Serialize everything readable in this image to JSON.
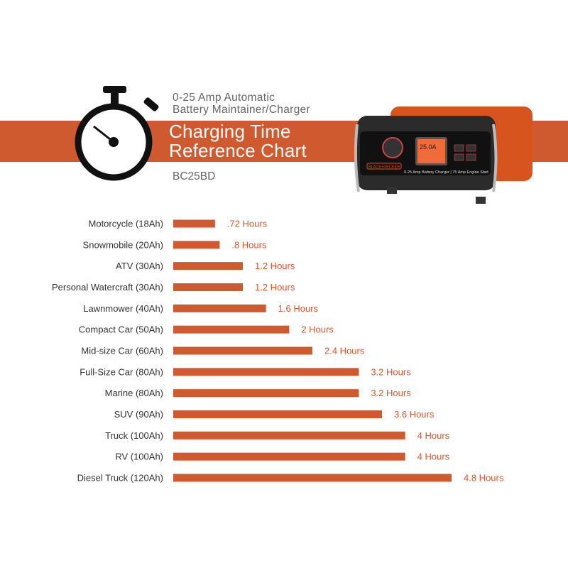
{
  "header": {
    "subtitle_line1": "0-25 Amp Automatic",
    "subtitle_line2": "Battery Maintainer/Charger",
    "title_line1": "Charging Time",
    "title_line2": "Reference Chart",
    "model": "BC25BD"
  },
  "product_image": {
    "brand_logo": "BLACK+DECKER",
    "display_reading": "25.0A",
    "front_label": "0-25 Amp Battery Charger | 75 Amp Engine Start"
  },
  "colors": {
    "accent": "#cf5a2f",
    "label_text": "#333333",
    "subtitle_text": "#666666"
  },
  "chart_data": {
    "type": "bar",
    "orientation": "horizontal",
    "categories": [
      "Motorcycle (18Ah)",
      "Snowmobile (20Ah)",
      "ATV (30Ah)",
      "Personal Watercraft (30Ah)",
      "Lawnmower (40Ah)",
      "Compact Car (50Ah)",
      "Mid-size Car (60Ah)",
      "Full-Size Car (80Ah)",
      "Marine (80Ah)",
      "SUV (90Ah)",
      "Truck (100Ah)",
      "RV (100Ah)",
      "Diesel Truck (120Ah)"
    ],
    "values": [
      0.72,
      0.8,
      1.2,
      1.2,
      1.6,
      2,
      2.4,
      3.2,
      3.2,
      3.6,
      4,
      4,
      4.8
    ],
    "data_labels": [
      ".72 Hours",
      ".8 Hours",
      "1.2 Hours",
      "1.2 Hours",
      "1.6 Hours",
      "2 Hours",
      "2.4 Hours",
      "3.2 Hours",
      "3.2 Hours",
      "3.6 Hours",
      "4 Hours",
      "4 Hours",
      "4.8 Hours"
    ],
    "xlim": [
      0,
      4.8
    ],
    "grid": false,
    "color": "#cf5a2f"
  }
}
